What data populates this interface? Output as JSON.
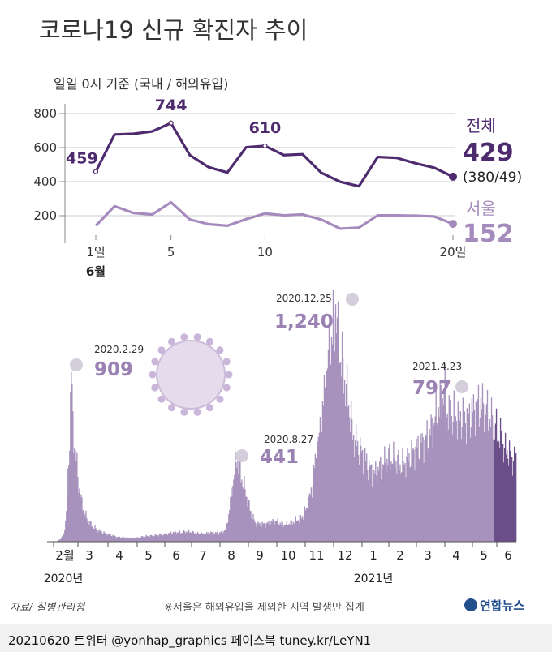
{
  "title": "코로나19 신규 확진자 추이",
  "subtitle": "일일 0시 기준 (국내 / 해외유입)",
  "colors": {
    "total": "#4e2a6e",
    "seoul": "#a58bbd",
    "bar": "#a792bd",
    "bar_recent": "#6b4f8a",
    "axis": "#888888",
    "grid": "#cccccc"
  },
  "chart_data": [
    {
      "type": "line",
      "title": "",
      "x_tick_labels": [
        "1일",
        "5",
        "10",
        "20일"
      ],
      "x_tick_positions": [
        1,
        5,
        10,
        20
      ],
      "x_sub_label": "6월",
      "y_tick_labels": [
        "800",
        "600",
        "400",
        "200"
      ],
      "ylim": [
        0,
        800
      ],
      "grid": true,
      "series": [
        {
          "name": "전체",
          "x": [
            1,
            2,
            3,
            4,
            5,
            6,
            7,
            8,
            9,
            10,
            11,
            12,
            13,
            14,
            15,
            16,
            17,
            18,
            19,
            20
          ],
          "values": [
            459,
            677,
            681,
            695,
            744,
            556,
            485,
            454,
            602,
            610,
            556,
            561,
            452,
            399,
            373,
            545,
            540,
            508,
            482,
            429
          ]
        },
        {
          "name": "서울",
          "x": [
            1,
            2,
            3,
            4,
            5,
            6,
            7,
            8,
            9,
            10,
            11,
            12,
            13,
            14,
            15,
            16,
            17,
            18,
            19,
            20
          ],
          "values": [
            141,
            256,
            216,
            207,
            279,
            178,
            150,
            141,
            180,
            213,
            202,
            207,
            177,
            124,
            130,
            202,
            202,
            200,
            196,
            152
          ]
        }
      ],
      "annotations": [
        "459",
        "744",
        "610"
      ],
      "end_labels": {
        "total_name": "전체",
        "total_value": "429",
        "total_breakdown": "(380/49)",
        "seoul_name": "서울",
        "seoul_value": "152"
      }
    },
    {
      "type": "bar",
      "title": "",
      "month_labels": [
        "2월",
        "3",
        "4",
        "5",
        "6",
        "7",
        "8",
        "9",
        "10",
        "11",
        "12",
        "1",
        "2",
        "3",
        "4",
        "5",
        "6"
      ],
      "year_labels": [
        "2020년",
        "2021년"
      ],
      "ylim": [
        0,
        1300
      ],
      "peaks": [
        {
          "date": "2020.2.29",
          "value": "909"
        },
        {
          "date": "2020.8.27",
          "value": "441"
        },
        {
          "date": "2020.12.25",
          "value": "1,240"
        },
        {
          "date": "2021.4.23",
          "value": "797"
        }
      ],
      "profile": [
        [
          0,
          1
        ],
        [
          12,
          3
        ],
        [
          16,
          15
        ],
        [
          20,
          40
        ],
        [
          23,
          150
        ],
        [
          26,
          420
        ],
        [
          29,
          909
        ],
        [
          31,
          600
        ],
        [
          34,
          480
        ],
        [
          38,
          300
        ],
        [
          42,
          200
        ],
        [
          48,
          120
        ],
        [
          55,
          80
        ],
        [
          62,
          60
        ],
        [
          70,
          45
        ],
        [
          85,
          25
        ],
        [
          100,
          18
        ],
        [
          110,
          20
        ],
        [
          118,
          28
        ],
        [
          125,
          30
        ],
        [
          135,
          35
        ],
        [
          145,
          40
        ],
        [
          155,
          50
        ],
        [
          165,
          48
        ],
        [
          172,
          55
        ],
        [
          180,
          45
        ],
        [
          190,
          40
        ],
        [
          200,
          48
        ],
        [
          210,
          45
        ],
        [
          218,
          60
        ],
        [
          222,
          140
        ],
        [
          226,
          280
        ],
        [
          230,
          390
        ],
        [
          232,
          441
        ],
        [
          235,
          380
        ],
        [
          240,
          300
        ],
        [
          245,
          220
        ],
        [
          250,
          140
        ],
        [
          255,
          95
        ],
        [
          262,
          90
        ],
        [
          270,
          95
        ],
        [
          278,
          110
        ],
        [
          286,
          95
        ],
        [
          292,
          90
        ],
        [
          300,
          100
        ],
        [
          306,
          115
        ],
        [
          312,
          130
        ],
        [
          318,
          180
        ],
        [
          324,
          280
        ],
        [
          328,
          420
        ],
        [
          332,
          520
        ],
        [
          336,
          640
        ],
        [
          340,
          800
        ],
        [
          344,
          950
        ],
        [
          348,
          1050
        ],
        [
          351,
          1150
        ],
        [
          353,
          1240
        ],
        [
          356,
          1050
        ],
        [
          360,
          950
        ],
        [
          365,
          820
        ],
        [
          370,
          700
        ],
        [
          374,
          560
        ],
        [
          378,
          520
        ],
        [
          383,
          480
        ],
        [
          388,
          440
        ],
        [
          394,
          390
        ],
        [
          400,
          350
        ],
        [
          410,
          400
        ],
        [
          418,
          440
        ],
        [
          425,
          430
        ],
        [
          433,
          400
        ],
        [
          440,
          420
        ],
        [
          448,
          470
        ],
        [
          455,
          500
        ],
        [
          462,
          530
        ],
        [
          468,
          560
        ],
        [
          473,
          620
        ],
        [
          479,
          700
        ],
        [
          484,
          760
        ],
        [
          486,
          797
        ],
        [
          489,
          700
        ],
        [
          494,
          650
        ],
        [
          500,
          660
        ],
        [
          506,
          650
        ],
        [
          512,
          640
        ],
        [
          518,
          660
        ],
        [
          524,
          700
        ],
        [
          530,
          720
        ],
        [
          536,
          700
        ],
        [
          540,
          660
        ],
        [
          546,
          620
        ],
        [
          552,
          560
        ],
        [
          556,
          540
        ],
        [
          560,
          480
        ],
        [
          565,
          470
        ],
        [
          568,
          430
        ]
      ],
      "day_count": 575,
      "recent_from_day": 548
    }
  ],
  "source": "자료/ 질병관리청",
  "note": "※서울은 해외유입을 제외한 지역 발생만 집계",
  "logo_text": "연합뉴스",
  "footer": "20210620 트위터 @yonhap_graphics  페이스북 tuney.kr/LeYN1"
}
